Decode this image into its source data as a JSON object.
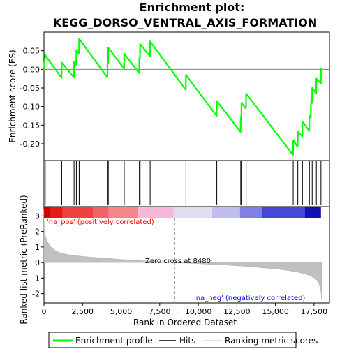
{
  "chart_data": {
    "type": "line",
    "title_line1": "Enrichment plot:",
    "title_line2": "KEGG_DORSO_VENTRAL_AXIS_FORMATION",
    "es_ylabel": "Enrichment score (ES)",
    "metric_ylabel": "Ranked list metric (PreRanked)",
    "xlabel": "Rank in Ordered Dataset",
    "xlim": [
      0,
      18500
    ],
    "es_ylim": [
      -0.245,
      0.1
    ],
    "metric_ylim": [
      -2.6,
      3.6
    ],
    "x_ticks": [
      0,
      2500,
      5000,
      7500,
      10000,
      12500,
      15000,
      17500
    ],
    "x_tick_labels": [
      "0",
      "2,500",
      "5,000",
      "7,500",
      "10,000",
      "12,500",
      "15,000",
      "17,500"
    ],
    "es_ticks": [
      0.05,
      0.0,
      -0.05,
      -0.1,
      -0.15,
      -0.2
    ],
    "es_tick_labels": [
      "0.05",
      "0.00",
      "-0.05",
      "-0.10",
      "-0.15",
      "-0.20"
    ],
    "metric_ticks": [
      3,
      2,
      1,
      0,
      -1,
      -2
    ],
    "metric_tick_labels": [
      "3",
      "2",
      "1",
      "0",
      "-1",
      "-2"
    ],
    "hits": [
      80,
      1150,
      1950,
      2100,
      2280,
      4120,
      4170,
      5200,
      6180,
      6230,
      6880,
      9200,
      11200,
      12750,
      12800,
      13100,
      16150,
      16450,
      16750,
      17200,
      17300,
      17380,
      17650,
      17950
    ],
    "es_profile": [
      [
        0,
        -0.002
      ],
      [
        80,
        0.038
      ],
      [
        1140,
        -0.023
      ],
      [
        1150,
        0.018
      ],
      [
        1940,
        -0.022
      ],
      [
        1950,
        0.02
      ],
      [
        2090,
        0.012
      ],
      [
        2100,
        0.052
      ],
      [
        2270,
        0.042
      ],
      [
        2280,
        0.082
      ],
      [
        4110,
        -0.022
      ],
      [
        4120,
        0.018
      ],
      [
        4160,
        0.018
      ],
      [
        4170,
        0.058
      ],
      [
        5190,
        0.002
      ],
      [
        5200,
        0.042
      ],
      [
        6170,
        -0.01
      ],
      [
        6180,
        0.03
      ],
      [
        6220,
        0.028
      ],
      [
        6230,
        0.068
      ],
      [
        6870,
        0.035
      ],
      [
        6880,
        0.075
      ],
      [
        9190,
        -0.055
      ],
      [
        9200,
        -0.015
      ],
      [
        11190,
        -0.125
      ],
      [
        11200,
        -0.085
      ],
      [
        12740,
        -0.168
      ],
      [
        12750,
        -0.128
      ],
      [
        12790,
        -0.13
      ],
      [
        12800,
        -0.09
      ],
      [
        13090,
        -0.105
      ],
      [
        13100,
        -0.065
      ],
      [
        16140,
        -0.23
      ],
      [
        16150,
        -0.19
      ],
      [
        16440,
        -0.208
      ],
      [
        16450,
        -0.168
      ],
      [
        16740,
        -0.18
      ],
      [
        16750,
        -0.14
      ],
      [
        17190,
        -0.165
      ],
      [
        17200,
        -0.125
      ],
      [
        17290,
        -0.13
      ],
      [
        17300,
        -0.09
      ],
      [
        17370,
        -0.09
      ],
      [
        17380,
        -0.05
      ],
      [
        17640,
        -0.065
      ],
      [
        17650,
        -0.025
      ],
      [
        17940,
        -0.037
      ],
      [
        17950,
        0.003
      ]
    ],
    "metric_profile": [
      [
        0,
        3.4
      ],
      [
        20,
        2.1
      ],
      [
        80,
        1.75
      ],
      [
        200,
        1.4
      ],
      [
        400,
        1.05
      ],
      [
        700,
        0.8
      ],
      [
        1000,
        0.65
      ],
      [
        1500,
        0.52
      ],
      [
        2000,
        0.45
      ],
      [
        3000,
        0.35
      ],
      [
        4000,
        0.28
      ],
      [
        5000,
        0.2
      ],
      [
        6000,
        0.14
      ],
      [
        7000,
        0.08
      ],
      [
        8000,
        0.03
      ],
      [
        8480,
        0.0
      ],
      [
        9500,
        -0.05
      ],
      [
        10500,
        -0.1
      ],
      [
        11500,
        -0.15
      ],
      [
        12500,
        -0.21
      ],
      [
        13500,
        -0.28
      ],
      [
        14500,
        -0.37
      ],
      [
        15500,
        -0.47
      ],
      [
        16200,
        -0.57
      ],
      [
        16800,
        -0.7
      ],
      [
        17200,
        -0.83
      ],
      [
        17500,
        -0.98
      ],
      [
        17700,
        -1.15
      ],
      [
        17850,
        -1.45
      ],
      [
        17950,
        -1.9
      ],
      [
        17990,
        -2.35
      ]
    ],
    "zero_cross_label": "Zero cross at 8480",
    "zero_cross_x": 8480,
    "pos_label": "'na_pos' (positively correlated)",
    "neg_label": "'na_neg' (negatively correlated)",
    "colorbar_segments": [
      [
        0,
        400,
        "#d40000"
      ],
      [
        400,
        1200,
        "#e81818"
      ],
      [
        1200,
        3200,
        "#f04040"
      ],
      [
        3200,
        4200,
        "#f26464"
      ],
      [
        4200,
        6100,
        "#f48888"
      ],
      [
        6100,
        8400,
        "#f6b8d8"
      ],
      [
        8400,
        10900,
        "#e0dcf2"
      ],
      [
        10900,
        12700,
        "#c0bcec"
      ],
      [
        12700,
        14100,
        "#7f7fe6"
      ],
      [
        14100,
        16900,
        "#4646d8"
      ],
      [
        16900,
        17950,
        "#1212b4"
      ]
    ],
    "legend": [
      "Enrichment profile",
      "Hits",
      "Ranking metric scores"
    ],
    "colors": {
      "es_line": "#00ff00",
      "hit": "#000000",
      "metric_fill": "#c0c0c0",
      "zero_line": "#a0a0a0",
      "pos_text": "#ff0000",
      "neg_text": "#0000ff"
    }
  }
}
